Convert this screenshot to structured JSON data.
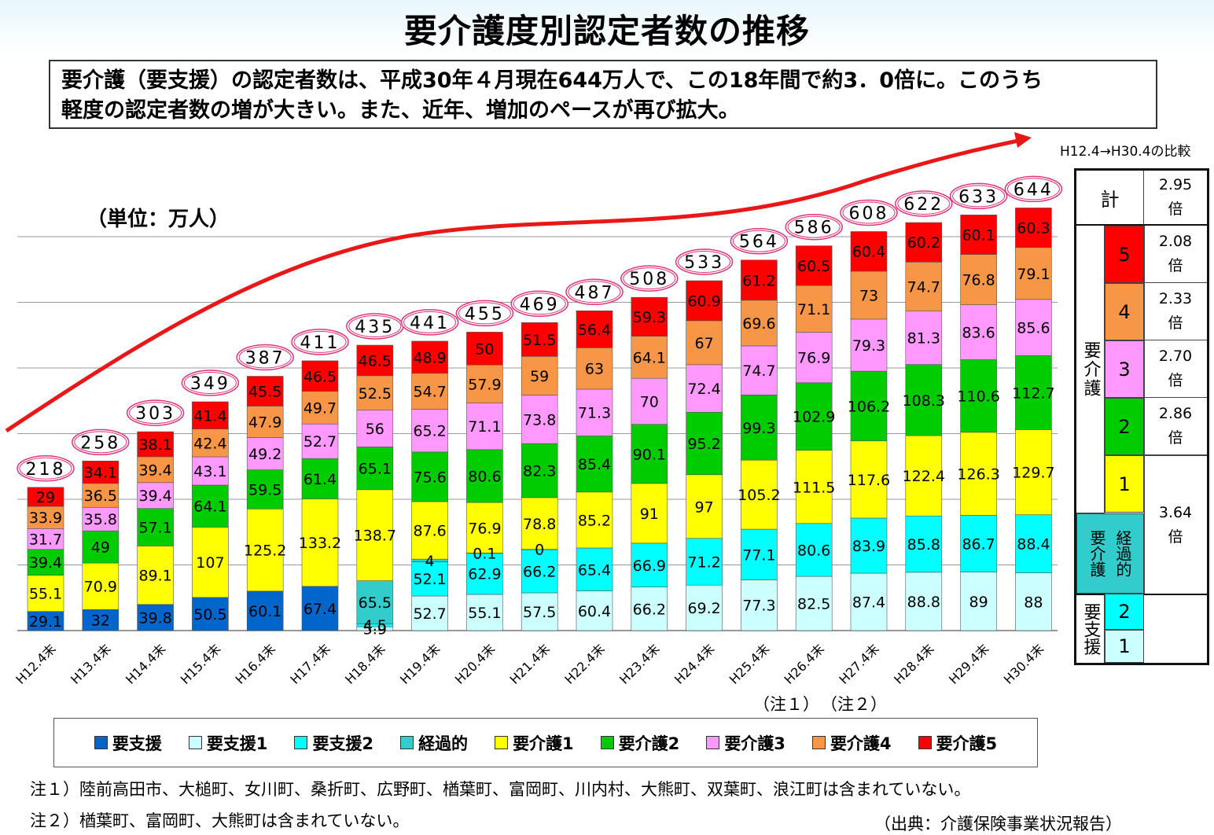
{
  "title": "要介護度別認定者数の推移",
  "summary": {
    "line1": "要介護（要支援）の認定者数は、平成30年４月現在644万人で、この18年間で約3．0倍に。このうち",
    "line2": "軽度の認定者数の増が大きい。また、近年、増加のペースが再び拡大。"
  },
  "unit_label": "（単位：万人）",
  "comparison_label": "H12.4→H30.4の比較",
  "comparison_table": {
    "total_label": "計",
    "total_ratio": "2.95",
    "ratio_unit": "倍",
    "youkaigo_label": "要介護",
    "levels": [
      {
        "label": "5",
        "ratio": "2.08",
        "color": "#ff0000"
      },
      {
        "label": "4",
        "ratio": "2.33",
        "color": "#f79646"
      },
      {
        "label": "3",
        "ratio": "2.70",
        "color": "#ff99ff"
      },
      {
        "label": "2",
        "ratio": "2.86",
        "color": "#00cc00"
      },
      {
        "label": "1",
        "ratio": "",
        "color": "#ffff00"
      }
    ],
    "keikateki_label_a": "経過的",
    "keikateki_label_b": "要介護",
    "keikateki_ratio": "3.64",
    "youshien_label": "要支援",
    "youshien_levels": [
      {
        "label": "2",
        "color": "#00ffff"
      },
      {
        "label": "1",
        "color": "#ccffff"
      }
    ]
  },
  "chart_data": {
    "type": "bar",
    "stacked": true,
    "categories": [
      "H12.4末",
      "H13.4末",
      "H14.4末",
      "H15.4末",
      "H16.4末",
      "H17.4末",
      "H18.4末",
      "H19.4末",
      "H20.4末",
      "H21.4末",
      "H22.4末",
      "H23.4末",
      "H24.4末",
      "H25.4末",
      "H26.4末",
      "H27.4末",
      "H28.4末",
      "H29.4末",
      "H30.4末"
    ],
    "totals": [
      "218",
      "258",
      "303",
      "349",
      "387",
      "411",
      "435",
      "441",
      "455",
      "469",
      "487",
      "508",
      "533",
      "564",
      "586",
      "608",
      "622",
      "633",
      "644"
    ],
    "series": [
      {
        "name": "要支援",
        "color": "#0066cc",
        "values": [
          29.1,
          32,
          39.8,
          50.5,
          60.1,
          67.4,
          null,
          null,
          null,
          null,
          null,
          null,
          null,
          null,
          null,
          null,
          null,
          null,
          null
        ]
      },
      {
        "name": "要支援1",
        "color": "#ccffff",
        "values": [
          null,
          null,
          null,
          null,
          null,
          null,
          5.9,
          52.7,
          55.1,
          57.5,
          60.4,
          66.2,
          69.2,
          77.3,
          82.5,
          87.4,
          88.8,
          89,
          88
        ]
      },
      {
        "name": "要支援2",
        "color": "#00ffff",
        "values": [
          null,
          null,
          null,
          null,
          null,
          null,
          4.5,
          52.1,
          62.9,
          66.2,
          65.4,
          66.9,
          71.2,
          77.1,
          80.6,
          83.9,
          85.8,
          86.7,
          88.4
        ]
      },
      {
        "name": "経過的",
        "color": "#33cccc",
        "values": [
          null,
          null,
          null,
          null,
          null,
          null,
          65.5,
          4,
          0.1,
          0,
          null,
          null,
          null,
          null,
          null,
          null,
          null,
          null,
          null
        ]
      },
      {
        "name": "要介護1",
        "color": "#ffff00",
        "values": [
          55.1,
          70.9,
          89.1,
          107,
          125.2,
          133.2,
          138.7,
          87.6,
          76.9,
          78.8,
          85.2,
          91,
          97,
          105.2,
          111.5,
          117.6,
          122.4,
          126.3,
          129.7
        ]
      },
      {
        "name": "要介護2",
        "color": "#00cc00",
        "values": [
          39.4,
          49,
          57.1,
          64.1,
          59.5,
          61.4,
          65.1,
          75.6,
          80.6,
          82.3,
          85.4,
          90.1,
          95.2,
          99.3,
          102.9,
          106.2,
          108.3,
          110.6,
          112.7
        ]
      },
      {
        "name": "要介護3",
        "color": "#ff99ff",
        "values": [
          31.7,
          35.8,
          39.4,
          43.1,
          49.2,
          52.7,
          56,
          65.2,
          71.1,
          73.8,
          71.3,
          70,
          72.4,
          74.7,
          76.9,
          79.3,
          81.3,
          83.6,
          85.6
        ]
      },
      {
        "name": "要介護4",
        "color": "#f79646",
        "values": [
          33.9,
          36.5,
          39.4,
          42.4,
          47.9,
          49.7,
          52.5,
          54.7,
          57.9,
          59,
          63,
          64.1,
          67,
          69.6,
          71.1,
          73,
          74.7,
          76.8,
          79.1
        ]
      },
      {
        "name": "要介護5",
        "color": "#ff0000",
        "values": [
          29,
          34.1,
          38.1,
          41.4,
          45.5,
          46.5,
          46.5,
          48.9,
          50,
          51.5,
          56.4,
          59.3,
          60.9,
          61.2,
          60.5,
          60.4,
          60.2,
          60.1,
          60.3
        ]
      }
    ],
    "ylim": [
      0,
      650
    ],
    "gridlines": [
      100,
      200,
      300,
      400,
      500,
      600
    ],
    "grid": true,
    "annotations": [
      "（注１）",
      "（注２）"
    ]
  },
  "legend": [
    {
      "label": "要支援",
      "color": "#0066cc"
    },
    {
      "label": "要支援1",
      "color": "#ccffff"
    },
    {
      "label": "要支援2",
      "color": "#00ffff"
    },
    {
      "label": "経過的",
      "color": "#33cccc"
    },
    {
      "label": "要介護1",
      "color": "#ffff00"
    },
    {
      "label": "要介護2",
      "color": "#00cc00"
    },
    {
      "label": "要介護3",
      "color": "#ff99ff"
    },
    {
      "label": "要介護4",
      "color": "#f79646"
    },
    {
      "label": "要介護5",
      "color": "#ff0000"
    }
  ],
  "notes": {
    "note1": "注１）陸前高田市、大槌町、女川町、桑折町、広野町、楢葉町、富岡町、川内村、大熊町、双葉町、浪江町は含まれていない。",
    "note2": "注２）楢葉町、富岡町、大熊町は含まれていない。",
    "source": "（出典：介護保険事業状況報告）",
    "mark1": "（注１）",
    "mark2": "（注２）"
  }
}
